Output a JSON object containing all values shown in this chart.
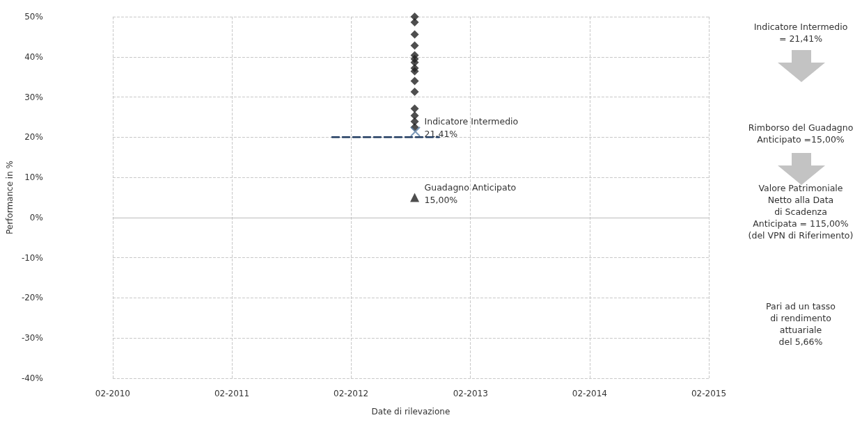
{
  "chart_data": {
    "type": "scatter",
    "xlabel": "Date di rilevazione",
    "ylabel": "Performance in %",
    "xlim": [
      "2010-02-01",
      "2015-02-01"
    ],
    "xticks": [
      {
        "value": "2010-02-01",
        "label": "02-2010"
      },
      {
        "value": "2011-02-01",
        "label": "02-2011"
      },
      {
        "value": "2012-02-01",
        "label": "02-2012"
      },
      {
        "value": "2013-02-01",
        "label": "02-2013"
      },
      {
        "value": "2014-02-01",
        "label": "02-2014"
      },
      {
        "value": "2015-02-01",
        "label": "02-2015"
      }
    ],
    "ylim": [
      -40,
      50
    ],
    "yticks": [
      {
        "value": -40,
        "label": "-40%"
      },
      {
        "value": -30,
        "label": "-30%"
      },
      {
        "value": -20,
        "label": "-20%"
      },
      {
        "value": -10,
        "label": "-10%"
      },
      {
        "value": 0,
        "label": "0%"
      },
      {
        "value": 10,
        "label": "10%"
      },
      {
        "value": 20,
        "label": "20%"
      },
      {
        "value": 30,
        "label": "30%"
      },
      {
        "value": 40,
        "label": "40%"
      },
      {
        "value": 50,
        "label": "50%"
      }
    ],
    "grid": true,
    "series": [
      {
        "type": "line",
        "color": "#1f3a5f",
        "line_style": "dashed",
        "marker": "none",
        "x": [
          "2011-12-05",
          "2012-10-28"
        ],
        "values": [
          20,
          20
        ]
      },
      {
        "color": "#222222",
        "marker": "diamond",
        "x": [
          "2012-08-14",
          "2012-08-14",
          "2012-08-14",
          "2012-08-14",
          "2012-08-14",
          "2012-08-14",
          "2012-08-14",
          "2012-08-14",
          "2012-08-14",
          "2012-08-14",
          "2012-08-14",
          "2012-08-14",
          "2012-08-14",
          "2012-08-14",
          "2012-08-14"
        ],
        "values": [
          50,
          48.6,
          45.6,
          42.8,
          40.4,
          39.5,
          38.6,
          37.2,
          36.4,
          34,
          31.3,
          27.1,
          25.4,
          23.9,
          22.5
        ]
      },
      {
        "color": "#5b7fa6",
        "marker": "cross",
        "x": [
          "2012-08-16"
        ],
        "values": [
          21.41
        ]
      },
      {
        "color": "#222222",
        "marker": "triangle",
        "x": [
          "2012-08-14"
        ],
        "values": [
          5
        ]
      }
    ],
    "ref_lines": [
      {
        "axis": "y",
        "value": 0,
        "color": "#bbbbbb",
        "line_style": "solid"
      }
    ],
    "annotations": [
      {
        "text": "Indicatore Intermedio\n21,41%",
        "x": "2012-08-14",
        "y": 21.41
      },
      {
        "text": "Guadagno Anticipato\n15,00%",
        "x": "2012-08-14",
        "y": 5
      },
      "Indicatore Intermedio\n= 21,41%",
      "Rimborso del Guadagno\nAnticipato =15,00%",
      "Valore Patrimoniale\nNetto alla Data\ndi Scadenza\nAnticipata = 115,00%\n(del VPN di Riferimento)",
      "Pari ad un tasso\ndi rendimento\nattuariale\ndel 5,66%"
    ]
  }
}
